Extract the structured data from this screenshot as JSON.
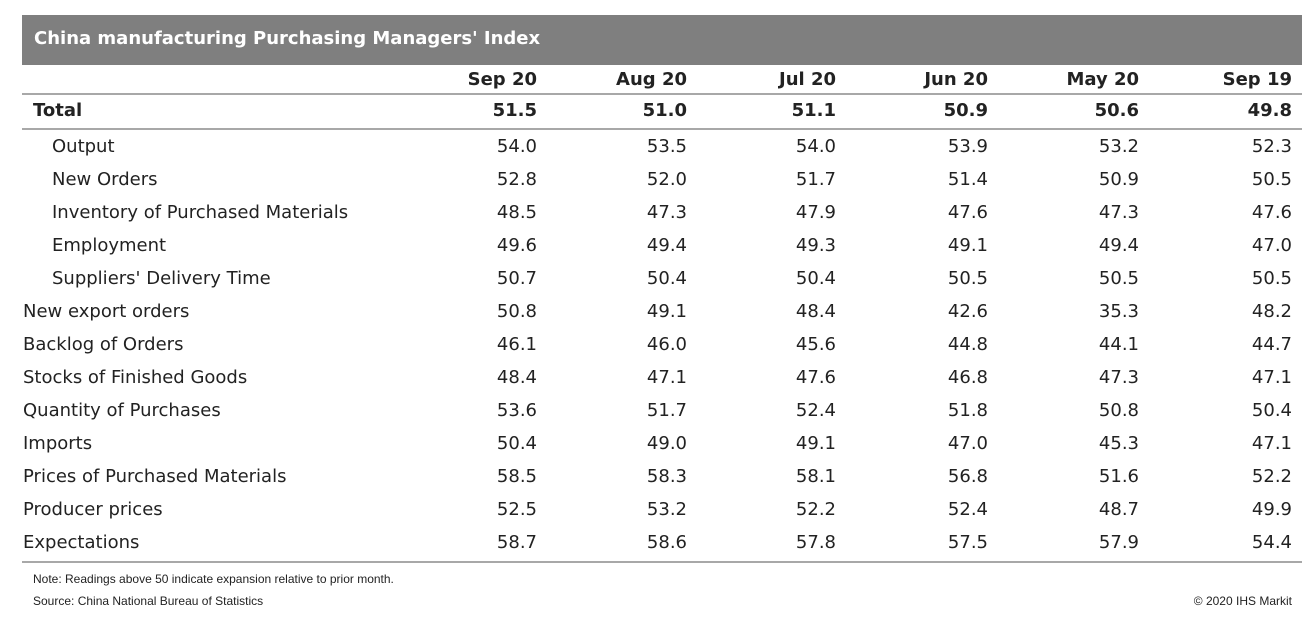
{
  "title": "China manufacturing Purchasing Managers' Index",
  "chart_data": {
    "type": "table",
    "columns": [
      "Sep 20",
      "Aug 20",
      "Jul 20",
      "Jun 20",
      "May 20",
      "Sep 19"
    ],
    "rows": [
      {
        "label": "Total",
        "level": 0,
        "bold": true,
        "values": [
          "51.5",
          "51.0",
          "51.1",
          "50.9",
          "50.6",
          "49.8"
        ]
      },
      {
        "label": "Output",
        "level": 1,
        "values": [
          "54.0",
          "53.5",
          "54.0",
          "53.9",
          "53.2",
          "52.3"
        ]
      },
      {
        "label": "New Orders",
        "level": 1,
        "values": [
          "52.8",
          "52.0",
          "51.7",
          "51.4",
          "50.9",
          "50.5"
        ]
      },
      {
        "label": "Inventory of Purchased Materials",
        "level": 1,
        "values": [
          "48.5",
          "47.3",
          "47.9",
          "47.6",
          "47.3",
          "47.6"
        ]
      },
      {
        "label": "Employment",
        "level": 1,
        "values": [
          "49.6",
          "49.4",
          "49.3",
          "49.1",
          "49.4",
          "47.0"
        ]
      },
      {
        "label": "Suppliers' Delivery Time",
        "level": 1,
        "values": [
          "50.7",
          "50.4",
          "50.4",
          "50.5",
          "50.5",
          "50.5"
        ]
      },
      {
        "label": "New export orders",
        "level": 0,
        "values": [
          "50.8",
          "49.1",
          "48.4",
          "42.6",
          "35.3",
          "48.2"
        ]
      },
      {
        "label": "Backlog of Orders",
        "level": 0,
        "values": [
          "46.1",
          "46.0",
          "45.6",
          "44.8",
          "44.1",
          "44.7"
        ]
      },
      {
        "label": "Stocks of Finished Goods",
        "level": 0,
        "values": [
          "48.4",
          "47.1",
          "47.6",
          "46.8",
          "47.3",
          "47.1"
        ]
      },
      {
        "label": "Quantity of Purchases",
        "level": 0,
        "values": [
          "53.6",
          "51.7",
          "52.4",
          "51.8",
          "50.8",
          "50.4"
        ]
      },
      {
        "label": "Imports",
        "level": 0,
        "values": [
          "50.4",
          "49.0",
          "49.1",
          "47.0",
          "45.3",
          "47.1"
        ]
      },
      {
        "label": "Prices of Purchased Materials",
        "level": 0,
        "values": [
          "58.5",
          "58.3",
          "58.1",
          "56.8",
          "51.6",
          "52.2"
        ]
      },
      {
        "label": "Producer prices",
        "level": 0,
        "values": [
          "52.5",
          "53.2",
          "52.2",
          "52.4",
          "48.7",
          "49.9"
        ]
      },
      {
        "label": "Expectations",
        "level": 0,
        "values": [
          "58.7",
          "58.6",
          "57.8",
          "57.5",
          "57.9",
          "54.4"
        ]
      }
    ]
  },
  "footer": {
    "note": "Note: Readings above 50 indicate expansion relative to prior month.",
    "source": "Source: China National Bureau of Statistics",
    "copyright": "© 2020 IHS Markit"
  },
  "colors": {
    "title_bar": "#7f7f7f",
    "rule": "#a8a8a8"
  }
}
